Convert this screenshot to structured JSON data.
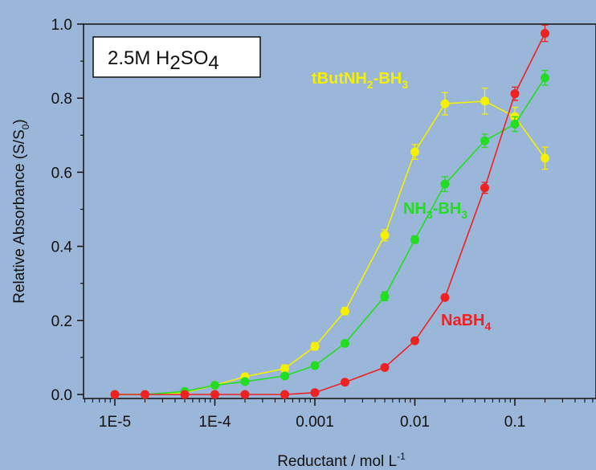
{
  "chart_data": {
    "type": "scatter",
    "annotation_box": "2.5M H2SO4",
    "xlabel": "Reductant / mol L-1",
    "ylabel": "Relative Absorbance (S/S0)",
    "x_scale": "log",
    "xlim": [
      5e-06,
      0.6
    ],
    "ylim": [
      0,
      1.0
    ],
    "x_tick_labels": [
      "1E-5",
      "1E-4",
      "0.001",
      "0.01",
      "0.1"
    ],
    "x_ticks": [
      1e-05,
      0.0001,
      0.001,
      0.01,
      0.1
    ],
    "y_ticks": [
      0.0,
      0.2,
      0.4,
      0.6,
      0.8,
      1.0
    ],
    "y_tick_labels": [
      "0.0",
      "0.2",
      "0.4",
      "0.6",
      "0.8",
      "1.0"
    ],
    "series": [
      {
        "name": "tButNH2-BH3",
        "color": "#f5f000",
        "x": [
          1e-05,
          2e-05,
          5e-05,
          0.0001,
          0.0002,
          0.0005,
          0.001,
          0.002,
          0.005,
          0.01,
          0.02,
          0.05,
          0.1,
          0.2
        ],
        "y": [
          0.0,
          0.0,
          0.005,
          0.025,
          0.048,
          0.07,
          0.13,
          0.225,
          0.43,
          0.655,
          0.785,
          0.792,
          0.75,
          0.638
        ],
        "err": [
          0,
          0,
          0,
          0,
          0.008,
          0.01,
          0.01,
          0.01,
          0.015,
          0.02,
          0.03,
          0.035,
          0.025,
          0.03
        ]
      },
      {
        "name": "NH3-BH3",
        "color": "#22dd22",
        "x": [
          1e-05,
          2e-05,
          5e-05,
          0.0001,
          0.0002,
          0.0005,
          0.001,
          0.002,
          0.005,
          0.01,
          0.02,
          0.05,
          0.1,
          0.2
        ],
        "y": [
          0.0,
          0.0,
          0.008,
          0.025,
          0.035,
          0.05,
          0.078,
          0.138,
          0.265,
          0.418,
          0.568,
          0.685,
          0.73,
          0.855
        ],
        "err": [
          0,
          0,
          0,
          0,
          0.005,
          0.006,
          0.008,
          0.008,
          0.012,
          0.01,
          0.02,
          0.018,
          0.02,
          0.02
        ]
      },
      {
        "name": "NaBH4",
        "color": "#ee2222",
        "x": [
          1e-05,
          2e-05,
          5e-05,
          0.0001,
          0.0002,
          0.0005,
          0.001,
          0.002,
          0.005,
          0.01,
          0.02,
          0.05,
          0.1,
          0.2
        ],
        "y": [
          0.0,
          0.0,
          0.0,
          0.0,
          0.0,
          0.0,
          0.005,
          0.033,
          0.073,
          0.145,
          0.262,
          0.558,
          0.812,
          0.975
        ],
        "err": [
          0,
          0,
          0,
          0,
          0,
          0,
          0,
          0,
          0,
          0.005,
          0.008,
          0.015,
          0.018,
          0.022
        ]
      }
    ]
  }
}
